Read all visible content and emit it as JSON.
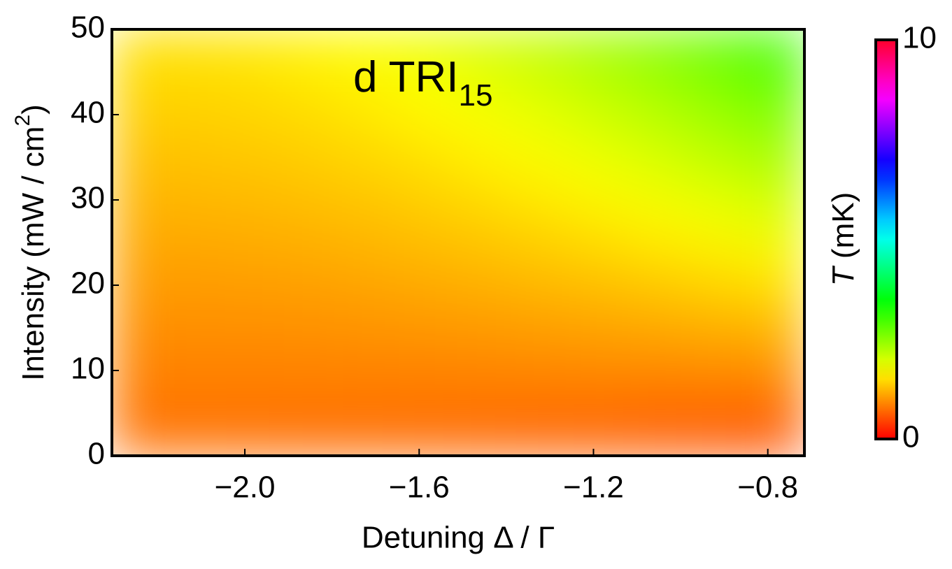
{
  "chart_data": {
    "type": "heatmap",
    "title": "d TRI",
    "title_subscript": "15",
    "xlabel": "Detuning Δ / Γ",
    "ylabel": [
      "Intensity (mW / cm",
      "2",
      ")"
    ],
    "colorbar_label": [
      "T",
      " (mK)"
    ],
    "xlim": [
      -2.305,
      -0.716
    ],
    "xticks": [
      {
        "value": -2.0,
        "label": "−2.0"
      },
      {
        "value": -1.6,
        "label": "−1.6"
      },
      {
        "value": -1.2,
        "label": "−1.2"
      },
      {
        "value": -0.8,
        "label": "−0.8"
      }
    ],
    "ylim": [
      0,
      50
    ],
    "yticks": [
      0,
      10,
      20,
      30,
      40,
      50
    ],
    "zlim": [
      0,
      10
    ],
    "zticks": [
      0,
      10
    ],
    "colormap": "hue",
    "x": [
      -2.239,
      -2.106,
      -1.974,
      -1.841,
      -1.709,
      -1.577,
      -1.444,
      -1.312,
      -1.179,
      -1.047,
      -0.915,
      -0.782
    ],
    "y": [
      2.5,
      7.5,
      12.5,
      17.5,
      22.5,
      27.5,
      32.5,
      37.5,
      42.5,
      47.5
    ],
    "z": [
      [
        0.74,
        0.74,
        0.73,
        0.72,
        0.71,
        0.69,
        0.68,
        0.65,
        0.63,
        0.6,
        0.57,
        0.53
      ],
      [
        0.83,
        0.83,
        0.83,
        0.83,
        0.82,
        0.82,
        0.82,
        0.82,
        0.82,
        0.81,
        0.81,
        0.81
      ],
      [
        0.91,
        0.92,
        0.92,
        0.93,
        0.94,
        0.95,
        0.97,
        0.99,
        1.01,
        1.03,
        1.05,
        1.08
      ],
      [
        1.0,
        1.0,
        1.01,
        1.03,
        1.05,
        1.08,
        1.11,
        1.15,
        1.19,
        1.24,
        1.3,
        1.36
      ],
      [
        1.08,
        1.09,
        1.11,
        1.13,
        1.17,
        1.21,
        1.26,
        1.32,
        1.38,
        1.46,
        1.54,
        1.63
      ],
      [
        1.17,
        1.18,
        1.2,
        1.24,
        1.28,
        1.34,
        1.4,
        1.48,
        1.57,
        1.67,
        1.78,
        1.91
      ],
      [
        1.25,
        1.27,
        1.3,
        1.34,
        1.39,
        1.46,
        1.55,
        1.65,
        1.76,
        1.89,
        2.03,
        2.18
      ],
      [
        1.34,
        1.36,
        1.39,
        1.44,
        1.51,
        1.59,
        1.69,
        1.81,
        1.95,
        2.1,
        2.27,
        2.45
      ],
      [
        1.43,
        1.44,
        1.48,
        1.54,
        1.62,
        1.72,
        1.84,
        1.98,
        2.14,
        2.31,
        2.51,
        2.73
      ],
      [
        1.51,
        1.53,
        1.58,
        1.65,
        1.74,
        1.85,
        1.99,
        2.14,
        2.33,
        2.53,
        2.76,
        3.0
      ]
    ]
  }
}
